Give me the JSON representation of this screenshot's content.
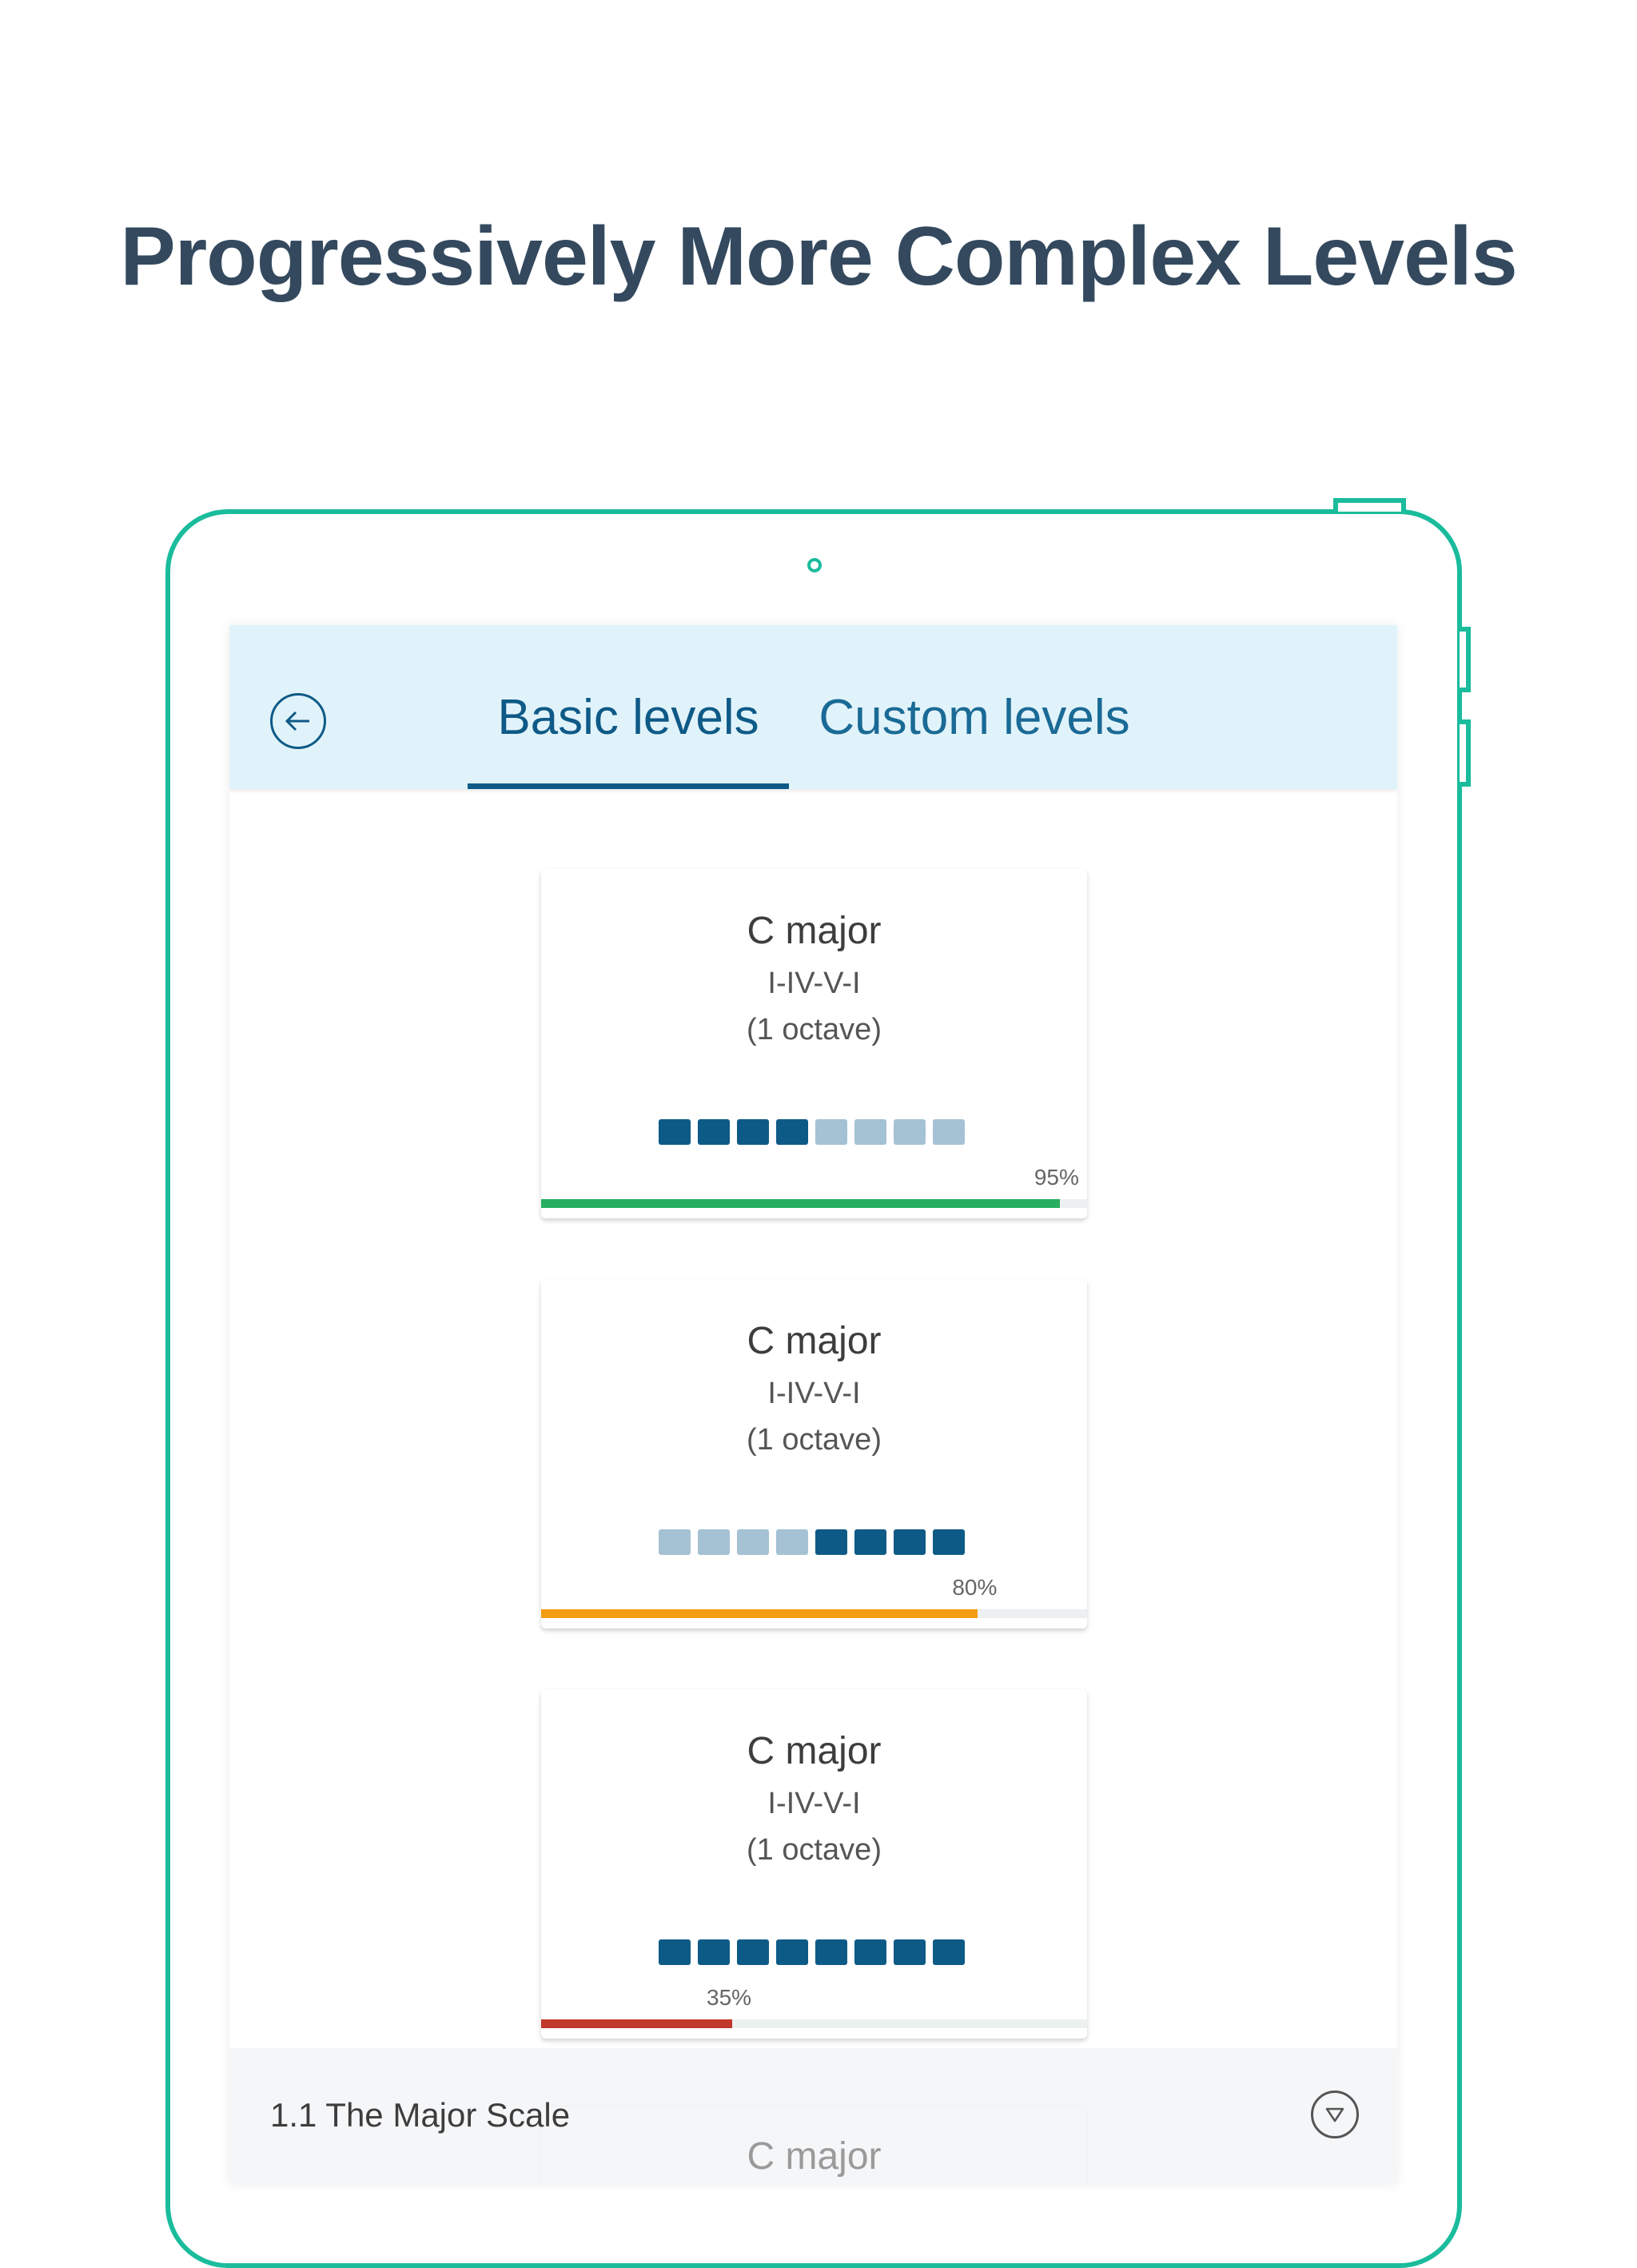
{
  "headline": "Progressively More Complex Levels",
  "header": {
    "back_icon": "arrow-left-circle-icon",
    "tabs": [
      {
        "label": "Basic levels",
        "active": true
      },
      {
        "label": "Custom levels",
        "active": false
      }
    ]
  },
  "colors": {
    "device_outline": "#1abc9c",
    "header_bg": "#e1f3fa",
    "accent": "#0e5a87",
    "square_filled": "#0e5a87",
    "square_empty": "#a5c1d4",
    "track": "#ecf0f1"
  },
  "cards": [
    {
      "title": "C major",
      "progression": "I-IV-V-I",
      "range": "(1 octave)",
      "squares": [
        1,
        1,
        1,
        1,
        0,
        0,
        0,
        0
      ],
      "progress": 95,
      "progress_label": "95%",
      "bar_color": "#27ae60"
    },
    {
      "title": "C major",
      "progression": "I-IV-V-I",
      "range": "(1 octave)",
      "squares": [
        0,
        0,
        0,
        0,
        1,
        1,
        1,
        1
      ],
      "progress": 80,
      "progress_label": "80%",
      "bar_color": "#f39c12"
    },
    {
      "title": "C major",
      "progression": "I-IV-V-I",
      "range": "(1 octave)",
      "squares": [
        1,
        1,
        1,
        1,
        1,
        1,
        1,
        1
      ],
      "progress": 35,
      "progress_label": "35%",
      "bar_color": "#c0392b"
    }
  ],
  "section": {
    "title": "1.1 The Major Scale",
    "toggle_icon": "chevron-down-circle-icon",
    "next_card_title": "C major"
  }
}
